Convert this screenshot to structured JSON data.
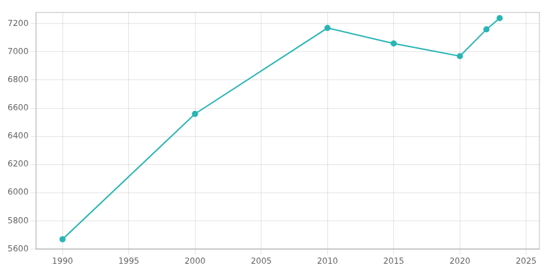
{
  "chart_data": {
    "type": "line",
    "x": [
      1990,
      2000,
      2010,
      2015,
      2020,
      2022,
      2023
    ],
    "values": [
      5670,
      6560,
      7170,
      7060,
      6970,
      7160,
      7240
    ],
    "color": "#2ab5b5",
    "marker": "circle",
    "xlim": [
      1988,
      2026
    ],
    "ylim": [
      5600,
      7280
    ],
    "xticks": [
      1990,
      1995,
      2000,
      2005,
      2010,
      2015,
      2020,
      2025
    ],
    "yticks": [
      5600,
      5800,
      6000,
      6200,
      6400,
      6600,
      6800,
      7000,
      7200
    ],
    "grid": true
  }
}
